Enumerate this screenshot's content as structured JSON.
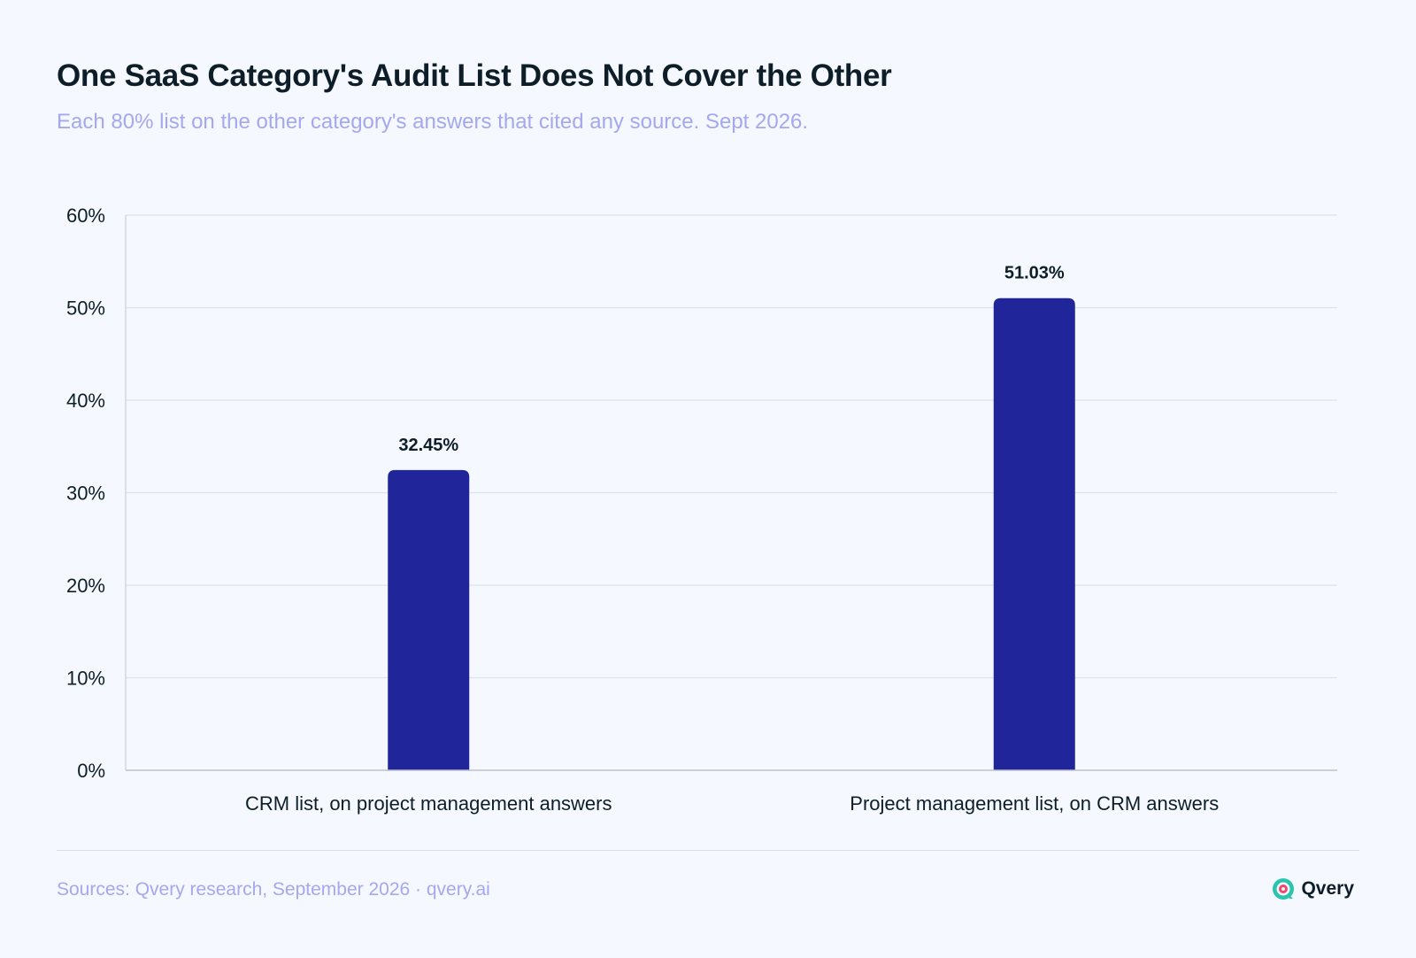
{
  "header": {
    "title": "One SaaS Category's Audit List Does Not Cover the Other",
    "subtitle": "Each 80% list on the other category's answers that cited any source. Sept 2026."
  },
  "chart_data": {
    "type": "bar",
    "categories": [
      "CRM list, on project management answers",
      "Project management list, on CRM answers"
    ],
    "values": [
      32.45,
      51.03
    ],
    "value_labels": [
      "32.45%",
      "51.03%"
    ],
    "ylim": [
      0,
      60
    ],
    "y_ticks": [
      0,
      10,
      20,
      30,
      40,
      50,
      60
    ],
    "y_tick_labels": [
      "0%",
      "10%",
      "20%",
      "30%",
      "40%",
      "50%",
      "60%"
    ],
    "grid": true,
    "bar_color": "#20259A",
    "title": "",
    "xlabel": "",
    "ylabel": ""
  },
  "footer": {
    "source": "Sources: Qvery research, September 2026 · qvery.ai",
    "brand_name": "Qvery",
    "brand_icon": "qvery-logo-icon",
    "brand_colors": [
      "#2BC4AE",
      "#F0466E"
    ]
  }
}
